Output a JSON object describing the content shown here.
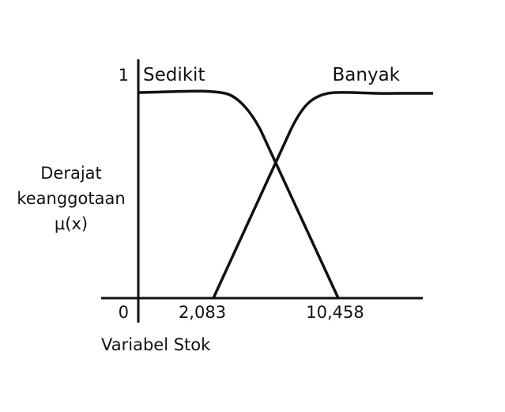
{
  "chart_data": {
    "type": "line",
    "title": "",
    "xlabel": "Variabel Stok",
    "ylabel_lines": [
      "Derajat",
      "keanggotaan",
      "μ(x)"
    ],
    "x_tick_labels": [
      "0",
      "2,083",
      "10,458"
    ],
    "y_tick_labels": [
      "1"
    ],
    "ylim": [
      0,
      1
    ],
    "grid": false,
    "line_color": "#111111",
    "series": [
      {
        "name": "Sedikit",
        "shape": "z-shaped",
        "points": [
          [
            "0",
            1
          ],
          [
            "10,458",
            0
          ]
        ]
      },
      {
        "name": "Banyak",
        "shape": "s-shaped",
        "points": [
          [
            "2,083",
            0
          ],
          [
            "",
            1
          ]
        ]
      }
    ]
  }
}
